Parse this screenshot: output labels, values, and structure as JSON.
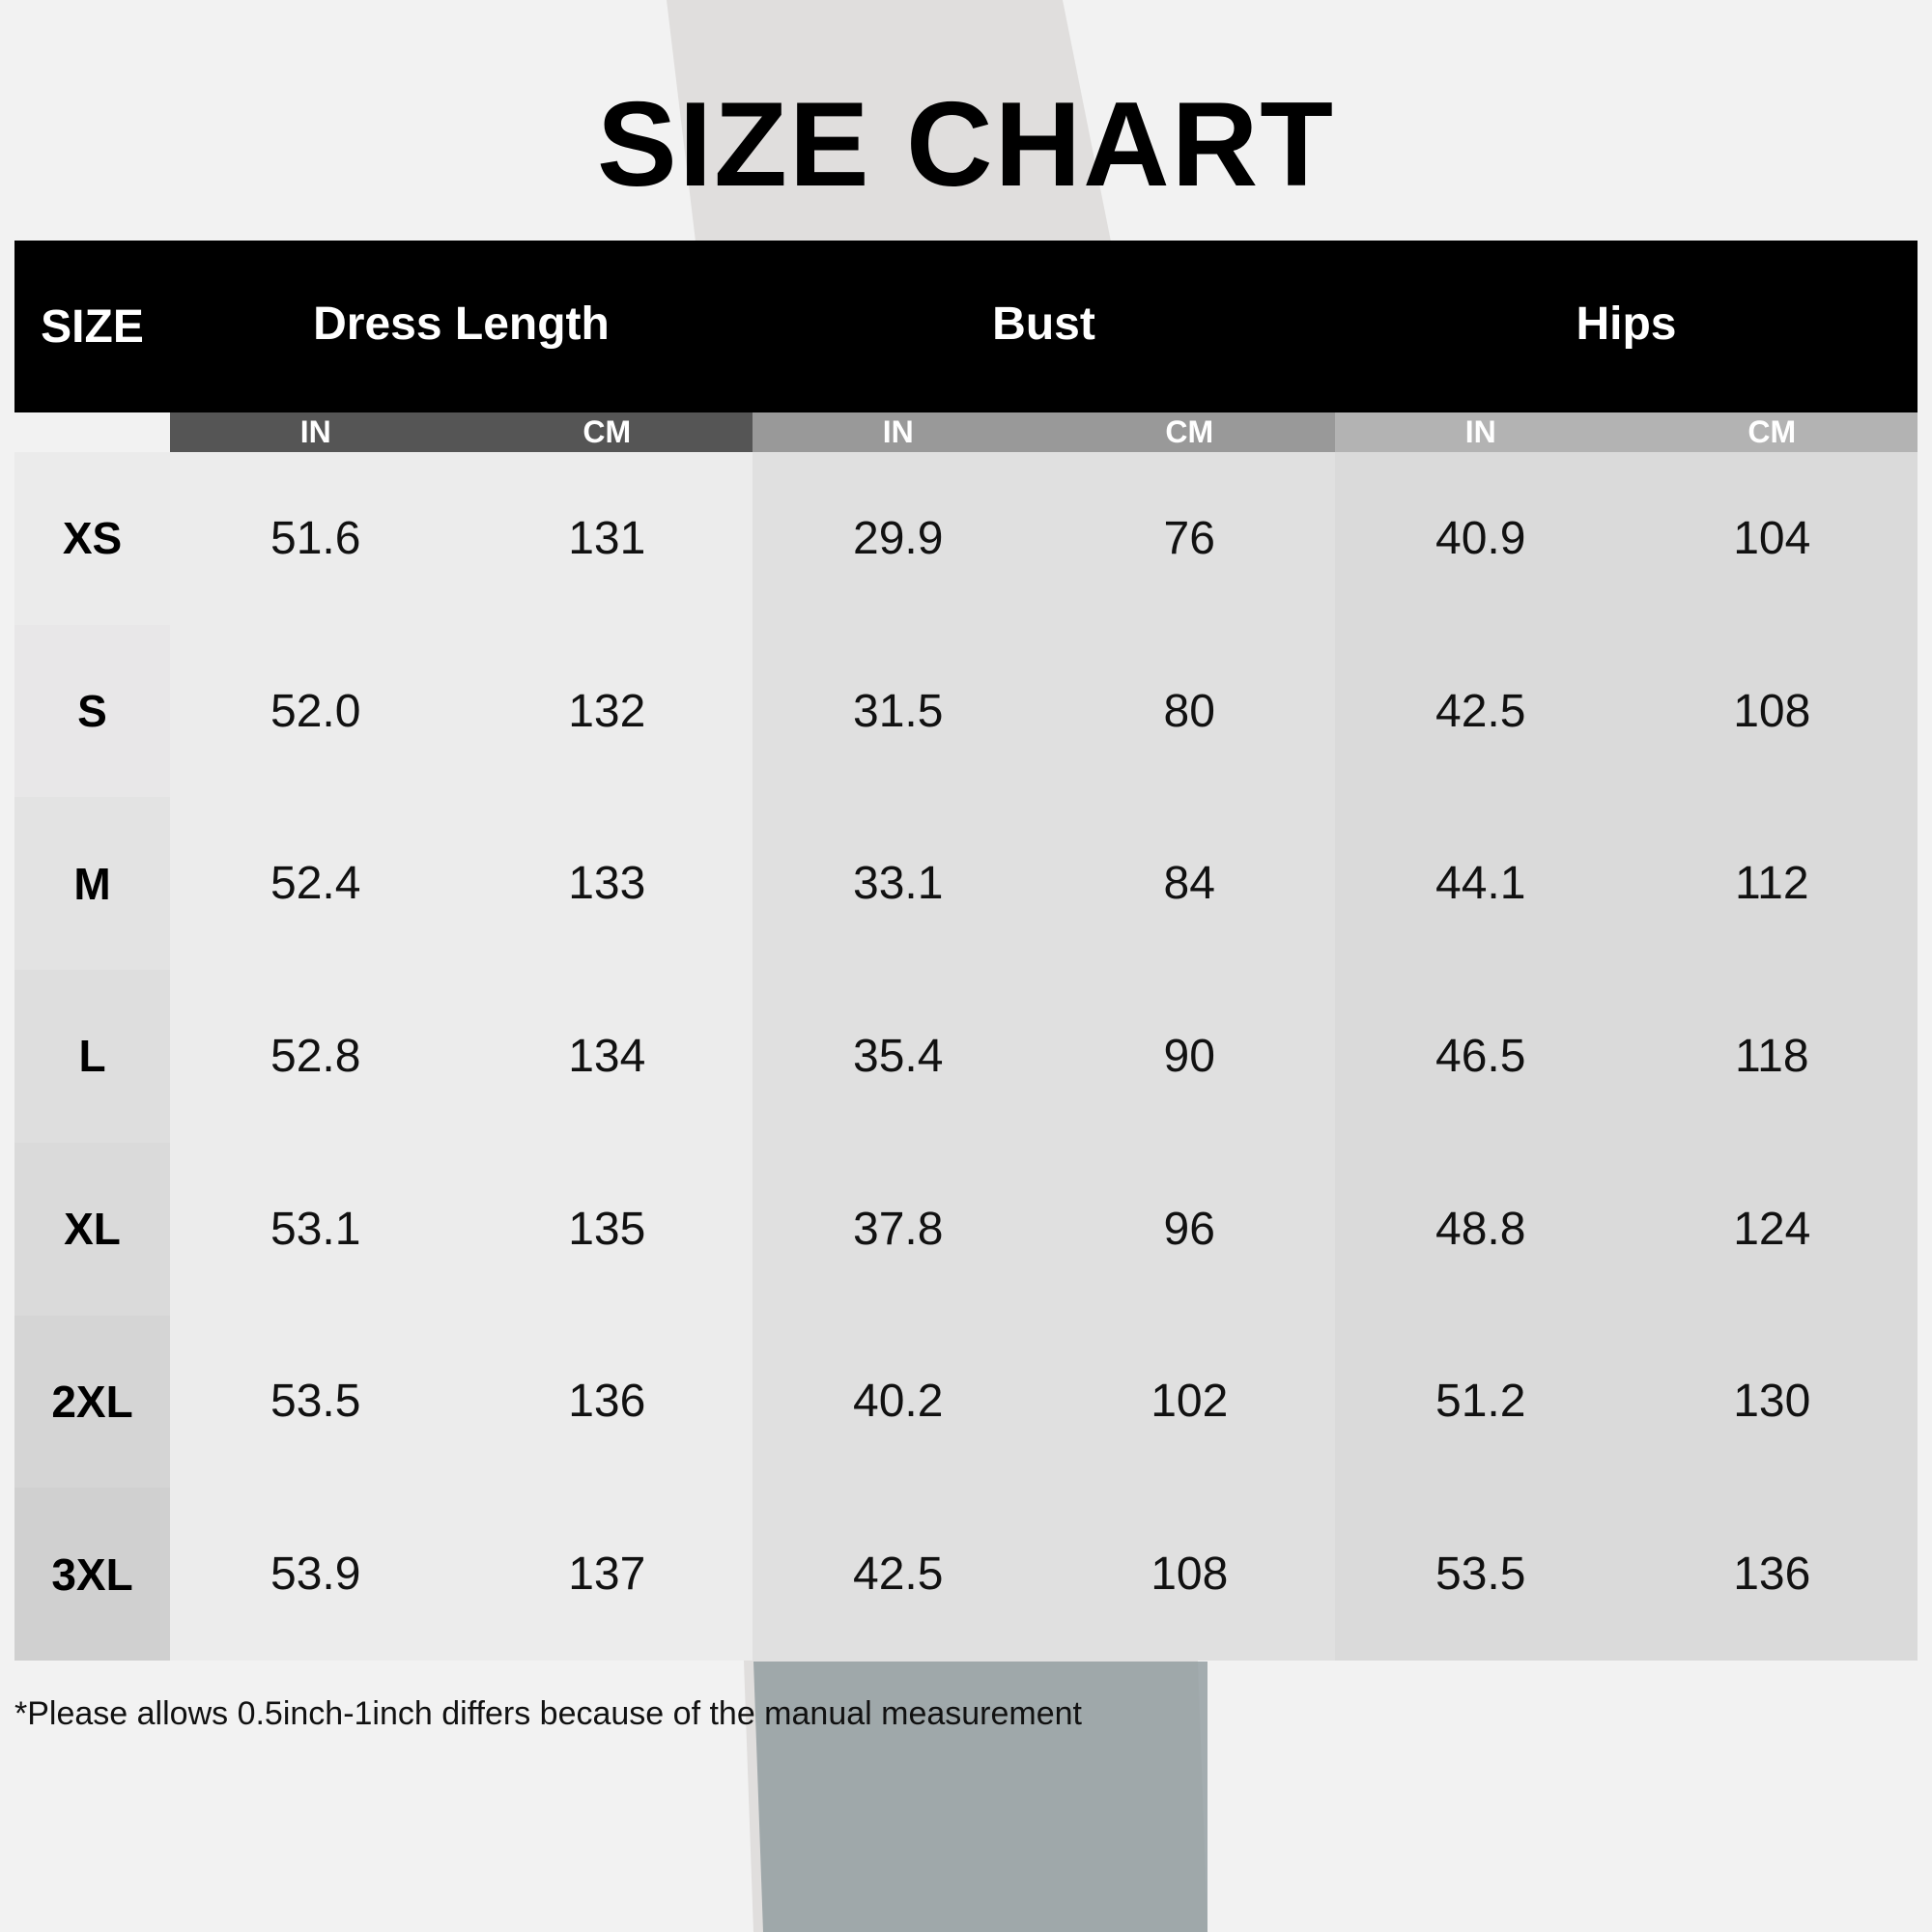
{
  "title": "SIZE CHART",
  "table": {
    "header": [
      "SIZE",
      "Dress Length",
      "Bust",
      "Hips"
    ],
    "units": [
      "IN",
      "CM",
      "IN",
      "CM",
      "IN",
      "CM"
    ],
    "rows": [
      [
        "XS",
        "51.6",
        "131",
        "29.9",
        "76",
        "40.9",
        "104"
      ],
      [
        "S",
        "52.0",
        "132",
        "31.5",
        "80",
        "42.5",
        "108"
      ],
      [
        "M",
        "52.4",
        "133",
        "33.1",
        "84",
        "44.1",
        "112"
      ],
      [
        "L",
        "52.8",
        "134",
        "35.4",
        "90",
        "46.5",
        "118"
      ],
      [
        "XL",
        "53.1",
        "135",
        "37.8",
        "96",
        "48.8",
        "124"
      ],
      [
        "2XL",
        "53.5",
        "136",
        "40.2",
        "102",
        "51.2",
        "130"
      ],
      [
        "3XL",
        "53.9",
        "137",
        "42.5",
        "108",
        "53.5",
        "136"
      ]
    ]
  },
  "footnote": "*Please allows 0.5inch-1inch differs because of the manual measurement"
}
